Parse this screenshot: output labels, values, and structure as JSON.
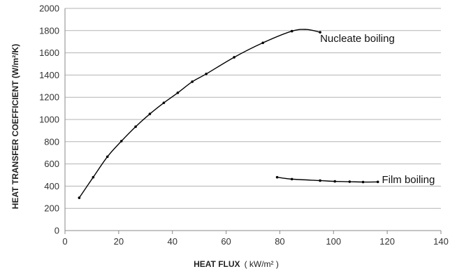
{
  "chart_data": {
    "type": "scatter",
    "title": "",
    "xlabel": "HEAT FLUX",
    "xlabel_unit": "( kW/m² )",
    "ylabel": "HEAT TRANSFER COEFFICIENT (W/m²/K)",
    "xlim": [
      0,
      140
    ],
    "ylim": [
      0,
      2000
    ],
    "xticks": [
      0,
      20,
      40,
      60,
      80,
      100,
      120,
      140
    ],
    "yticks": [
      0,
      200,
      400,
      600,
      800,
      1000,
      1200,
      1400,
      1600,
      1800,
      2000
    ],
    "grid": "horizontal",
    "legend": "none",
    "colors": {
      "line": "#000000",
      "grid": "#b3b3b3",
      "axis": "#888888"
    },
    "series": [
      {
        "points": [
          [
            5.3,
            295
          ],
          [
            10.5,
            480
          ],
          [
            15.8,
            665
          ],
          [
            21,
            805
          ],
          [
            26.3,
            935
          ],
          [
            31.6,
            1050
          ],
          [
            36.8,
            1150
          ],
          [
            42,
            1240
          ],
          [
            47.4,
            1340
          ],
          [
            52.6,
            1410
          ],
          [
            63,
            1560
          ],
          [
            73.7,
            1690
          ],
          [
            84.5,
            1795
          ],
          [
            95,
            1785
          ]
        ],
        "curve_peak": [
          90,
          1810
        ],
        "annotation": "Nucleate boiling",
        "annotation_at": [
          95,
          1730
        ]
      },
      {
        "points": [
          [
            79,
            480
          ],
          [
            84.5,
            463
          ],
          [
            95,
            450
          ],
          [
            100.5,
            443
          ],
          [
            106,
            440
          ],
          [
            111,
            437
          ],
          [
            116.5,
            438
          ]
        ],
        "annotation": "Film boiling",
        "annotation_at": [
          118,
          460
        ]
      }
    ]
  }
}
